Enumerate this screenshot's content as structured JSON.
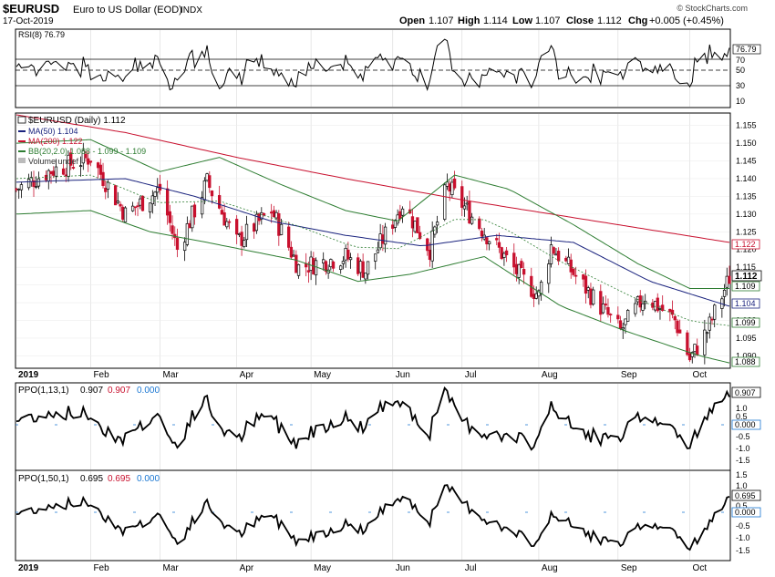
{
  "header": {
    "symbol": "$EURUSD",
    "name": "Euro to US Dollar (EOD)",
    "exchange": "INDX",
    "date": "17-Oct-2019",
    "open_label": "Open",
    "open": "1.107",
    "high_label": "High",
    "high": "1.114",
    "low_label": "Low",
    "low": "1.107",
    "close_label": "Close",
    "close": "1.112",
    "chg_label": "Chg",
    "chg": "+0.005 (+0.45%)",
    "watermark": "© StockCharts.com"
  },
  "colors": {
    "up_candle": "#000000",
    "down_candle": "#c8102e",
    "ma50": "#1a237e",
    "ma200": "#c8102e",
    "bollinger": "#2e7d32",
    "bb_mid": "#2e7d32",
    "gridline": "#dddddd",
    "rsi_zone": "#c8102e"
  },
  "rsi_panel": {
    "legend": "RSI(8) 76.79",
    "current": "76.79",
    "levels": [
      "70",
      "50",
      "30",
      "10"
    ]
  },
  "price_panel": {
    "legend_main": "$EURUSD (Daily) 1.112",
    "legend_ma50": "MA(50) 1.104",
    "legend_ma200": "MA(200) 1.122",
    "legend_bb": "BB(20,2.0) 1.088 - 1.099 - 1.109",
    "legend_volume": "Volume undef",
    "tags": {
      "close": "1.112",
      "bb_upper": "1.109",
      "ma50": "1.104",
      "bb_mid": "1.099",
      "bb_lower": "1.088",
      "ma200": "1.122"
    }
  },
  "ppo1_panel": {
    "legend_name": "PPO(1,13,1)",
    "legend_v1": "0.907",
    "legend_v2": "0.907",
    "legend_v3": "0.000",
    "current": "0.907",
    "zero": "0.000",
    "ticks": [
      "1.0",
      "0.5",
      "-0.5",
      "-1.0",
      "-1.5"
    ]
  },
  "ppo2_panel": {
    "legend_name": "PPO(1,50,1)",
    "legend_v1": "0.695",
    "legend_v2": "0.695",
    "legend_v3": "0.000",
    "current": "0.695",
    "zero": "0.000",
    "ticks": [
      "1.5",
      "1.0",
      "0.5",
      "-0.5",
      "-1.0",
      "-1.5"
    ]
  },
  "x_axis": {
    "labels": [
      "2019",
      "Feb",
      "Mar",
      "Apr",
      "May",
      "Jun",
      "Jul",
      "Aug",
      "Sep",
      "Oct"
    ],
    "bottom_labels": [
      "2019",
      "Feb",
      "Mar",
      "Apr",
      "May",
      "Jun",
      "Jul",
      "Aug",
      "Sep",
      "Oct"
    ]
  },
  "chart_data": {
    "type": "line",
    "title": "$EURUSD Euro to US Dollar (EOD)",
    "y_range": [
      1.087,
      1.158
    ],
    "y_ticks": [
      1.155,
      1.15,
      1.145,
      1.14,
      1.135,
      1.13,
      1.125,
      1.12,
      1.115,
      1.11,
      1.105,
      1.1,
      1.095,
      1.09
    ],
    "month_dates": [
      "2019-01-02",
      "2019-02-01",
      "2019-03-01",
      "2019-04-01",
      "2019-05-01",
      "2019-06-03",
      "2019-07-01",
      "2019-08-01",
      "2019-09-02",
      "2019-10-01"
    ],
    "close_series": [
      {
        "date": "2019-01-02",
        "value": 1.137
      },
      {
        "date": "2019-01-15",
        "value": 1.142
      },
      {
        "date": "2019-02-01",
        "value": 1.146
      },
      {
        "date": "2019-02-15",
        "value": 1.13
      },
      {
        "date": "2019-03-01",
        "value": 1.137
      },
      {
        "date": "2019-03-08",
        "value": 1.12
      },
      {
        "date": "2019-03-20",
        "value": 1.139
      },
      {
        "date": "2019-04-01",
        "value": 1.122
      },
      {
        "date": "2019-04-15",
        "value": 1.131
      },
      {
        "date": "2019-04-26",
        "value": 1.115
      },
      {
        "date": "2019-05-15",
        "value": 1.118
      },
      {
        "date": "2019-05-23",
        "value": 1.114
      },
      {
        "date": "2019-06-07",
        "value": 1.133
      },
      {
        "date": "2019-06-18",
        "value": 1.12
      },
      {
        "date": "2019-06-25",
        "value": 1.138
      },
      {
        "date": "2019-07-10",
        "value": 1.125
      },
      {
        "date": "2019-07-25",
        "value": 1.112
      },
      {
        "date": "2019-08-01",
        "value": 1.107
      },
      {
        "date": "2019-08-06",
        "value": 1.121
      },
      {
        "date": "2019-08-20",
        "value": 1.109
      },
      {
        "date": "2019-09-03",
        "value": 1.097
      },
      {
        "date": "2019-09-13",
        "value": 1.107
      },
      {
        "date": "2019-09-25",
        "value": 1.1
      },
      {
        "date": "2019-10-01",
        "value": 1.089
      },
      {
        "date": "2019-10-08",
        "value": 1.097
      },
      {
        "date": "2019-10-17",
        "value": 1.112
      }
    ],
    "ma50": [
      {
        "date": "2019-01-02",
        "value": 1.139
      },
      {
        "date": "2019-02-15",
        "value": 1.14
      },
      {
        "date": "2019-03-15",
        "value": 1.135
      },
      {
        "date": "2019-04-15",
        "value": 1.128
      },
      {
        "date": "2019-05-15",
        "value": 1.124
      },
      {
        "date": "2019-06-15",
        "value": 1.121
      },
      {
        "date": "2019-07-15",
        "value": 1.124
      },
      {
        "date": "2019-08-15",
        "value": 1.122
      },
      {
        "date": "2019-09-15",
        "value": 1.111
      },
      {
        "date": "2019-10-17",
        "value": 1.104
      }
    ],
    "ma200": [
      {
        "date": "2019-01-02",
        "value": 1.158
      },
      {
        "date": "2019-02-15",
        "value": 1.153
      },
      {
        "date": "2019-04-01",
        "value": 1.146
      },
      {
        "date": "2019-05-15",
        "value": 1.14
      },
      {
        "date": "2019-07-01",
        "value": 1.134
      },
      {
        "date": "2019-08-15",
        "value": 1.129
      },
      {
        "date": "2019-10-17",
        "value": 1.122
      }
    ],
    "bb_upper": [
      {
        "date": "2019-01-02",
        "value": 1.15
      },
      {
        "date": "2019-02-01",
        "value": 1.151
      },
      {
        "date": "2019-03-01",
        "value": 1.142
      },
      {
        "date": "2019-03-25",
        "value": 1.146
      },
      {
        "date": "2019-04-20",
        "value": 1.138
      },
      {
        "date": "2019-05-15",
        "value": 1.131
      },
      {
        "date": "2019-06-05",
        "value": 1.128
      },
      {
        "date": "2019-06-28",
        "value": 1.141
      },
      {
        "date": "2019-07-20",
        "value": 1.137
      },
      {
        "date": "2019-08-15",
        "value": 1.127
      },
      {
        "date": "2019-09-10",
        "value": 1.116
      },
      {
        "date": "2019-10-01",
        "value": 1.109
      },
      {
        "date": "2019-10-17",
        "value": 1.109
      }
    ],
    "bb_lower": [
      {
        "date": "2019-01-02",
        "value": 1.13
      },
      {
        "date": "2019-02-01",
        "value": 1.131
      },
      {
        "date": "2019-02-25",
        "value": 1.125
      },
      {
        "date": "2019-03-20",
        "value": 1.122
      },
      {
        "date": "2019-04-25",
        "value": 1.117
      },
      {
        "date": "2019-05-20",
        "value": 1.111
      },
      {
        "date": "2019-06-10",
        "value": 1.113
      },
      {
        "date": "2019-07-10",
        "value": 1.118
      },
      {
        "date": "2019-08-10",
        "value": 1.104
      },
      {
        "date": "2019-09-05",
        "value": 1.097
      },
      {
        "date": "2019-10-05",
        "value": 1.09
      },
      {
        "date": "2019-10-17",
        "value": 1.088
      }
    ],
    "rsi_range": [
      0,
      100
    ],
    "ppo1_range": [
      -1.8,
      1.4
    ],
    "ppo2_range": [
      -1.8,
      1.7
    ]
  }
}
